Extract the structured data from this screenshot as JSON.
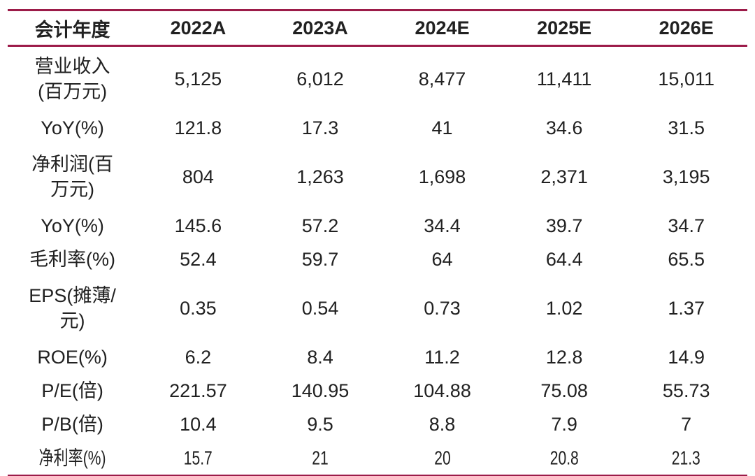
{
  "colors": {
    "accent_line": "#9c1b49",
    "text": "#212121",
    "background": "#ffffff"
  },
  "chart_data": {
    "type": "table",
    "title": "",
    "columns": [
      "会计年度",
      "2022A",
      "2023A",
      "2024E",
      "2025E",
      "2026E"
    ],
    "rows": [
      {
        "label": "营业收入\n(百万元)",
        "values": [
          "5,125",
          "6,012",
          "8,477",
          "11,411",
          "15,011"
        ]
      },
      {
        "label": "YoY(%)",
        "values": [
          "121.8",
          "17.3",
          "41",
          "34.6",
          "31.5"
        ]
      },
      {
        "label": "净利润(百\n万元)",
        "values": [
          "804",
          "1,263",
          "1,698",
          "2,371",
          "3,195"
        ]
      },
      {
        "label": "YoY(%)",
        "values": [
          "145.6",
          "57.2",
          "34.4",
          "39.7",
          "34.7"
        ]
      },
      {
        "label": "毛利率(%)",
        "values": [
          "52.4",
          "59.7",
          "64",
          "64.4",
          "65.5"
        ]
      },
      {
        "label": "EPS(摊薄/\n元)",
        "values": [
          "0.35",
          "0.54",
          "0.73",
          "1.02",
          "1.37"
        ]
      },
      {
        "label": "ROE(%)",
        "values": [
          "6.2",
          "8.4",
          "11.2",
          "12.8",
          "14.9"
        ]
      },
      {
        "label": "P/E(倍)",
        "values": [
          "221.57",
          "140.95",
          "104.88",
          "75.08",
          "55.73"
        ]
      },
      {
        "label": "P/B(倍)",
        "values": [
          "10.4",
          "9.5",
          "8.8",
          "7.9",
          "7"
        ]
      },
      {
        "label": "净利率(%)",
        "values": [
          "15.7",
          "21",
          "20",
          "20.8",
          "21.3"
        ]
      }
    ]
  }
}
